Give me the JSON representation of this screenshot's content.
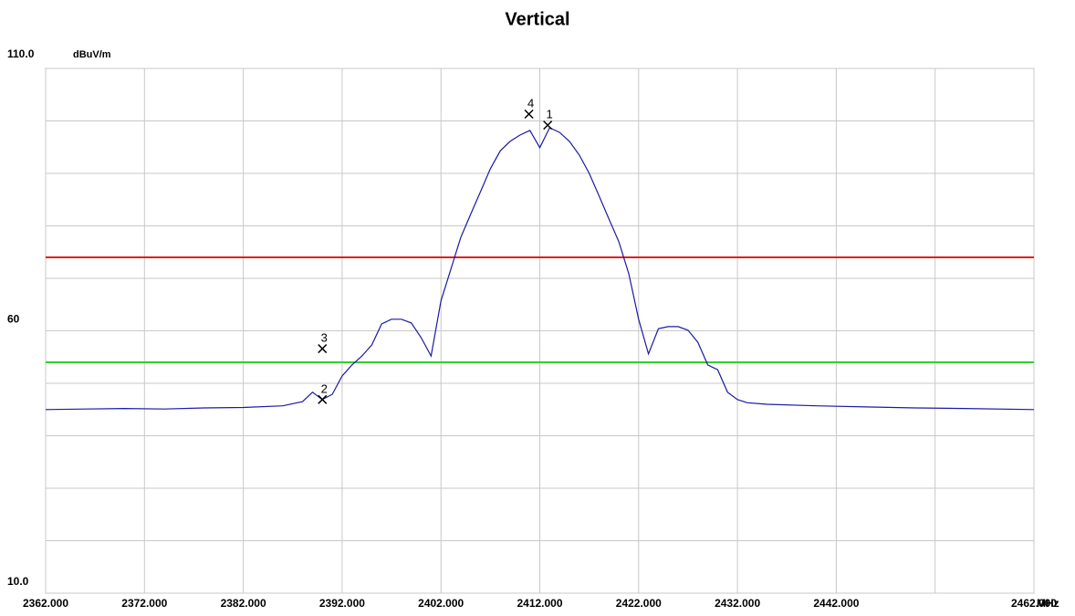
{
  "chart_data": {
    "type": "line",
    "title": "Vertical",
    "y_unit": "dBuV/m",
    "x_unit": "MHz",
    "xlim": [
      2362,
      2462
    ],
    "ylim": [
      10,
      110
    ],
    "xticks": [
      {
        "value": 2362,
        "label": "2362.000"
      },
      {
        "value": 2372,
        "label": "2372.000"
      },
      {
        "value": 2382,
        "label": "2382.000"
      },
      {
        "value": 2392,
        "label": "2392.000"
      },
      {
        "value": 2402,
        "label": "2402.000"
      },
      {
        "value": 2412,
        "label": "2412.000"
      },
      {
        "value": 2422,
        "label": "2422.000"
      },
      {
        "value": 2432,
        "label": "2432.000"
      },
      {
        "value": 2442,
        "label": "2442.000"
      },
      {
        "value": 2452,
        "label": null
      },
      {
        "value": 2462,
        "label": "2462.000"
      }
    ],
    "yticks": [
      {
        "value": 10,
        "label": "10.0"
      },
      {
        "value": 20,
        "label": null
      },
      {
        "value": 30,
        "label": null
      },
      {
        "value": 40,
        "label": null
      },
      {
        "value": 50,
        "label": null
      },
      60,
      {
        "value": 70,
        "label": null
      },
      {
        "value": 80,
        "label": null
      },
      {
        "value": 90,
        "label": null
      },
      {
        "value": 100,
        "label": null
      },
      {
        "value": 110,
        "label": "110.0"
      }
    ],
    "grid": true,
    "series": [
      {
        "color": "#1a1aa8",
        "x": [
          2362,
          2366,
          2370,
          2374,
          2378,
          2382,
          2386,
          2388,
          2389,
          2390,
          2391,
          2392,
          2393,
          2394,
          2395,
          2396,
          2397,
          2398,
          2399,
          2400,
          2401,
          2402,
          2403,
          2404,
          2405,
          2406,
          2407,
          2408,
          2409,
          2410,
          2411,
          2412,
          2413,
          2414,
          2415,
          2416,
          2417,
          2418,
          2419,
          2420,
          2421,
          2422,
          2423,
          2424,
          2425,
          2426,
          2427,
          2428,
          2429,
          2430,
          2431,
          2432,
          2433,
          2435,
          2440,
          2445,
          2450,
          2455,
          2462
        ],
        "values": [
          45.0,
          45.1,
          45.2,
          45.1,
          45.3,
          45.4,
          45.7,
          46.5,
          48.3,
          46.9,
          47.9,
          51.4,
          53.5,
          55.2,
          57.3,
          61.3,
          62.2,
          62.2,
          61.5,
          58.7,
          55.2,
          65.7,
          71.7,
          77.8,
          82.2,
          86.5,
          90.9,
          94.3,
          96.1,
          97.3,
          98.2,
          94.9,
          98.7,
          97.8,
          96.1,
          93.5,
          90.0,
          85.7,
          81.3,
          77.0,
          70.9,
          62.2,
          55.6,
          60.4,
          60.8,
          60.8,
          60.1,
          57.8,
          53.5,
          52.6,
          48.3,
          46.9,
          46.3,
          46.0,
          45.7,
          45.5,
          45.3,
          45.2,
          45.0
        ]
      }
    ],
    "hlines": [
      {
        "value": 74,
        "color": "#e02020"
      },
      {
        "value": 54,
        "color": "#30d030"
      }
    ],
    "markers": [
      {
        "label": "1",
        "x": 2412.8,
        "y": 99.2
      },
      {
        "label": "2",
        "x": 2390,
        "y": 46.9
      },
      {
        "label": "3",
        "x": 2390,
        "y": 56.6
      },
      {
        "label": "4",
        "x": 2410.9,
        "y": 101.3
      }
    ]
  }
}
